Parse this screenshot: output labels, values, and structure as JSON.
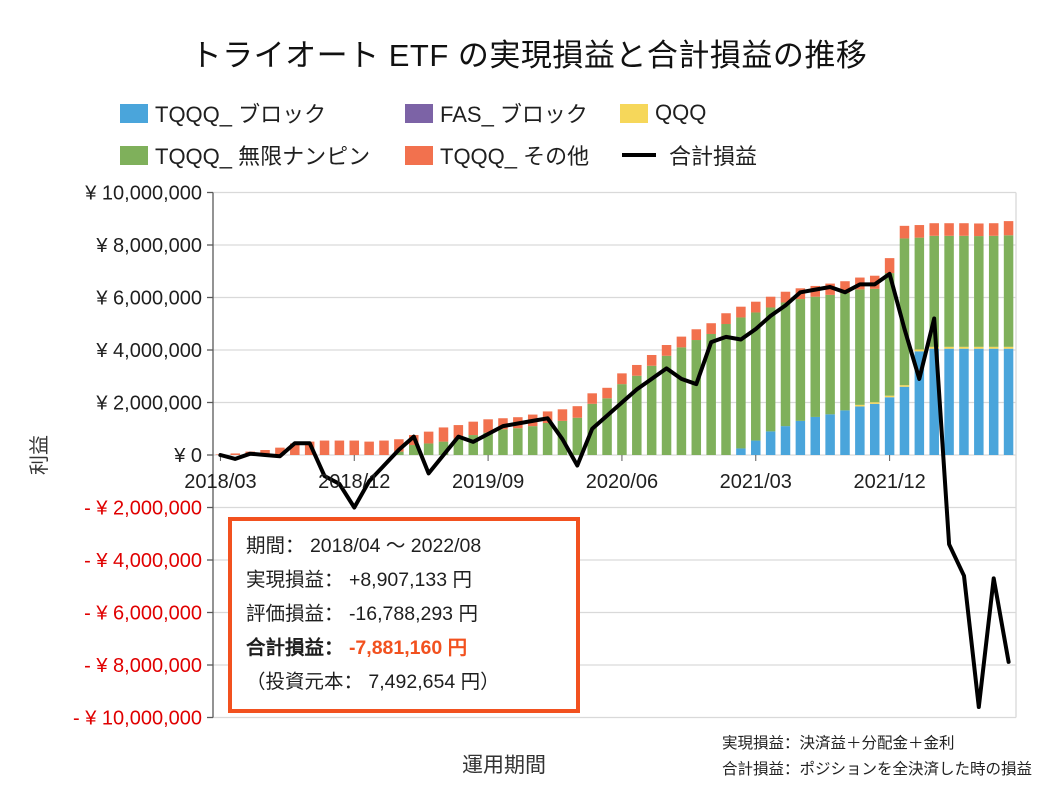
{
  "title": "トライオート ETF の実現損益と合計損益の推移",
  "legend": {
    "row1": [
      {
        "label": "TQQQ_ ブロック",
        "color": "#4AA5DB",
        "type": "box"
      },
      {
        "label": "FAS_ ブロック",
        "color": "#7C63A6",
        "type": "box"
      },
      {
        "label": "QQQ",
        "color": "#F6D75A",
        "type": "box"
      }
    ],
    "row2": [
      {
        "label": "TQQQ_ 無限ナンピン",
        "color": "#7FB05B",
        "type": "box"
      },
      {
        "label": "TQQQ_ その他",
        "color": "#F2714E",
        "type": "box"
      },
      {
        "label": "合計損益",
        "color": "#000000",
        "type": "line"
      }
    ]
  },
  "chart_data": {
    "type": "bar",
    "stacked": true,
    "unit": "million JPY",
    "title": "トライオート ETF の実現損益と合計損益の推移",
    "xlabel": "運用期間",
    "ylabel": "利益",
    "ylim": [
      -10,
      10
    ],
    "y_tick_step": 2,
    "grid": true,
    "legend_position": "top",
    "x": [
      "2018/03",
      "2018/04",
      "2018/05",
      "2018/06",
      "2018/07",
      "2018/08",
      "2018/09",
      "2018/10",
      "2018/11",
      "2018/12",
      "2019/01",
      "2019/02",
      "2019/03",
      "2019/04",
      "2019/05",
      "2019/06",
      "2019/07",
      "2019/08",
      "2019/09",
      "2019/10",
      "2019/11",
      "2019/12",
      "2020/01",
      "2020/02",
      "2020/03",
      "2020/04",
      "2020/05",
      "2020/06",
      "2020/07",
      "2020/08",
      "2020/09",
      "2020/10",
      "2020/11",
      "2020/12",
      "2021/01",
      "2021/02",
      "2021/03",
      "2021/04",
      "2021/05",
      "2021/06",
      "2021/07",
      "2021/08",
      "2021/09",
      "2021/10",
      "2021/11",
      "2021/12",
      "2022/01",
      "2022/02",
      "2022/03",
      "2022/04",
      "2022/05",
      "2022/06",
      "2022/07",
      "2022/08"
    ],
    "x_ticks": [
      {
        "index": 0,
        "label": "2018/03"
      },
      {
        "index": 9,
        "label": "2018/12"
      },
      {
        "index": 18,
        "label": "2019/09"
      },
      {
        "index": 27,
        "label": "2020/06"
      },
      {
        "index": 36,
        "label": "2021/03"
      },
      {
        "index": 45,
        "label": "2021/12"
      }
    ],
    "y_ticks": [
      {
        "value": 10,
        "label": "¥ 10,000,000"
      },
      {
        "value": 8,
        "label": "¥ 8,000,000"
      },
      {
        "value": 6,
        "label": "¥ 6,000,000"
      },
      {
        "value": 4,
        "label": "¥ 4,000,000"
      },
      {
        "value": 2,
        "label": "¥ 2,000,000"
      },
      {
        "value": 0,
        "label": "¥ 0"
      },
      {
        "value": -2,
        "label": "- ¥ 2,000,000"
      },
      {
        "value": -4,
        "label": "- ¥ 4,000,000"
      },
      {
        "value": -6,
        "label": "- ¥ 6,000,000"
      },
      {
        "value": -8,
        "label": "- ¥ 8,000,000"
      },
      {
        "value": -10,
        "label": "- ¥ 10,000,000"
      }
    ],
    "series": [
      {
        "name": "TQQQ_ブロック",
        "color": "#4AA5DB",
        "values": [
          0,
          0,
          0,
          0,
          0,
          0,
          0,
          0,
          0,
          0,
          0,
          0,
          0,
          0,
          0,
          0,
          0,
          0,
          0,
          0,
          0,
          0,
          0,
          0,
          0,
          0,
          0,
          0,
          0,
          0,
          0,
          0,
          0,
          0,
          0,
          0.25,
          0.55,
          0.9,
          1.1,
          1.3,
          1.45,
          1.55,
          1.7,
          1.85,
          1.95,
          2.2,
          2.6,
          3.95,
          4.05,
          4.05,
          4.05,
          4.05,
          4.05,
          4.05
        ]
      },
      {
        "name": "FAS_ブロック",
        "color": "#7C63A6",
        "values": [
          0,
          0,
          0,
          0,
          0,
          0,
          0,
          0,
          0,
          0,
          0,
          0,
          0,
          0,
          0,
          0,
          0,
          0,
          0,
          0,
          0,
          0,
          0,
          0,
          0,
          0,
          0,
          0,
          0,
          0,
          0,
          0,
          0,
          0,
          0,
          0,
          0,
          0,
          0,
          0,
          0,
          0,
          0,
          0,
          0,
          0,
          0,
          0,
          0,
          0,
          0,
          0,
          0,
          0
        ]
      },
      {
        "name": "QQQ",
        "color": "#F6D75A",
        "values": [
          0,
          0,
          0,
          0,
          0,
          0,
          0,
          0,
          0,
          0,
          0,
          0,
          0,
          0,
          0,
          0,
          0,
          0,
          0,
          0,
          0,
          0,
          0,
          0,
          0,
          0,
          0,
          0,
          0,
          0,
          0,
          0,
          0,
          0,
          0,
          0,
          0,
          0,
          0,
          0,
          0,
          0,
          0,
          0.06,
          0.06,
          0.06,
          0.06,
          0.07,
          0.07,
          0.07,
          0.07,
          0.07,
          0.07,
          0.07
        ]
      },
      {
        "name": "TQQQ_無限ナンピン",
        "color": "#7FB05B",
        "values": [
          0,
          0,
          0,
          0,
          0,
          0,
          0,
          0,
          0,
          0,
          0,
          0,
          0.13,
          0.38,
          0.44,
          0.51,
          0.63,
          0.76,
          0.85,
          0.98,
          1.02,
          1.1,
          1.22,
          1.3,
          1.42,
          1.95,
          2.16,
          2.7,
          3.02,
          3.4,
          3.78,
          4.1,
          4.38,
          4.61,
          4.99,
          4.99,
          4.88,
          4.72,
          4.71,
          4.64,
          4.58,
          4.55,
          4.47,
          4.4,
          4.32,
          4.67,
          5.59,
          4.26,
          4.23,
          4.23,
          4.23,
          4.22,
          4.23,
          4.25
        ]
      },
      {
        "name": "TQQQ_その他",
        "color": "#F2714E",
        "values": [
          0.02,
          0.06,
          0.13,
          0.19,
          0.28,
          0.44,
          0.51,
          0.55,
          0.55,
          0.55,
          0.51,
          0.55,
          0.47,
          0.38,
          0.45,
          0.54,
          0.51,
          0.51,
          0.51,
          0.42,
          0.42,
          0.44,
          0.44,
          0.44,
          0.44,
          0.4,
          0.4,
          0.41,
          0.41,
          0.41,
          0.41,
          0.41,
          0.41,
          0.41,
          0.41,
          0.41,
          0.41,
          0.41,
          0.41,
          0.41,
          0.41,
          0.43,
          0.45,
          0.45,
          0.5,
          0.57,
          0.48,
          0.48,
          0.48,
          0.48,
          0.48,
          0.48,
          0.48,
          0.54
        ]
      }
    ],
    "line_series": {
      "name": "合計損益",
      "color": "#000000",
      "values": [
        0,
        -0.15,
        0.05,
        0,
        -0.05,
        0.45,
        0.45,
        -0.8,
        -1.1,
        -2.0,
        -1.0,
        -0.4,
        0.2,
        0.7,
        -0.7,
        0,
        0.7,
        0.5,
        0.8,
        1.1,
        1.2,
        1.3,
        1.4,
        0.6,
        -0.4,
        1.0,
        1.5,
        2.0,
        2.5,
        2.9,
        3.3,
        2.9,
        2.7,
        4.3,
        4.5,
        4.4,
        4.8,
        5.3,
        5.7,
        6.2,
        6.3,
        6.4,
        6.2,
        6.5,
        6.5,
        6.9,
        4.8,
        2.9,
        5.2,
        -3.4,
        -4.6,
        -9.6,
        -4.7,
        -7.88
      ]
    }
  },
  "info_box": {
    "period_label": "期間：",
    "period_value": "2018/04 ～ 2022/08",
    "realized_label": "実現損益：",
    "realized_value": "+8,907,133 円",
    "valuation_label": "評価損益：",
    "valuation_value": "-16,788,293 円",
    "total_label": "合計損益：",
    "total_value": "-7,881,160 円",
    "principal_line": "（投資元本： 7,492,654 円）"
  },
  "axis_titles": {
    "y": "利益",
    "x": "運用期間"
  },
  "footnotes": {
    "line1": "実現損益：決済益＋分配金＋金利",
    "line2": "合計損益：ポジションを全決済した時の損益"
  },
  "colors": {
    "negative_tick": "#E00000",
    "gridline": "#D9D9D9",
    "axis_line": "#595959",
    "info_box_border": "#F2511F",
    "total_line": "#000000"
  }
}
